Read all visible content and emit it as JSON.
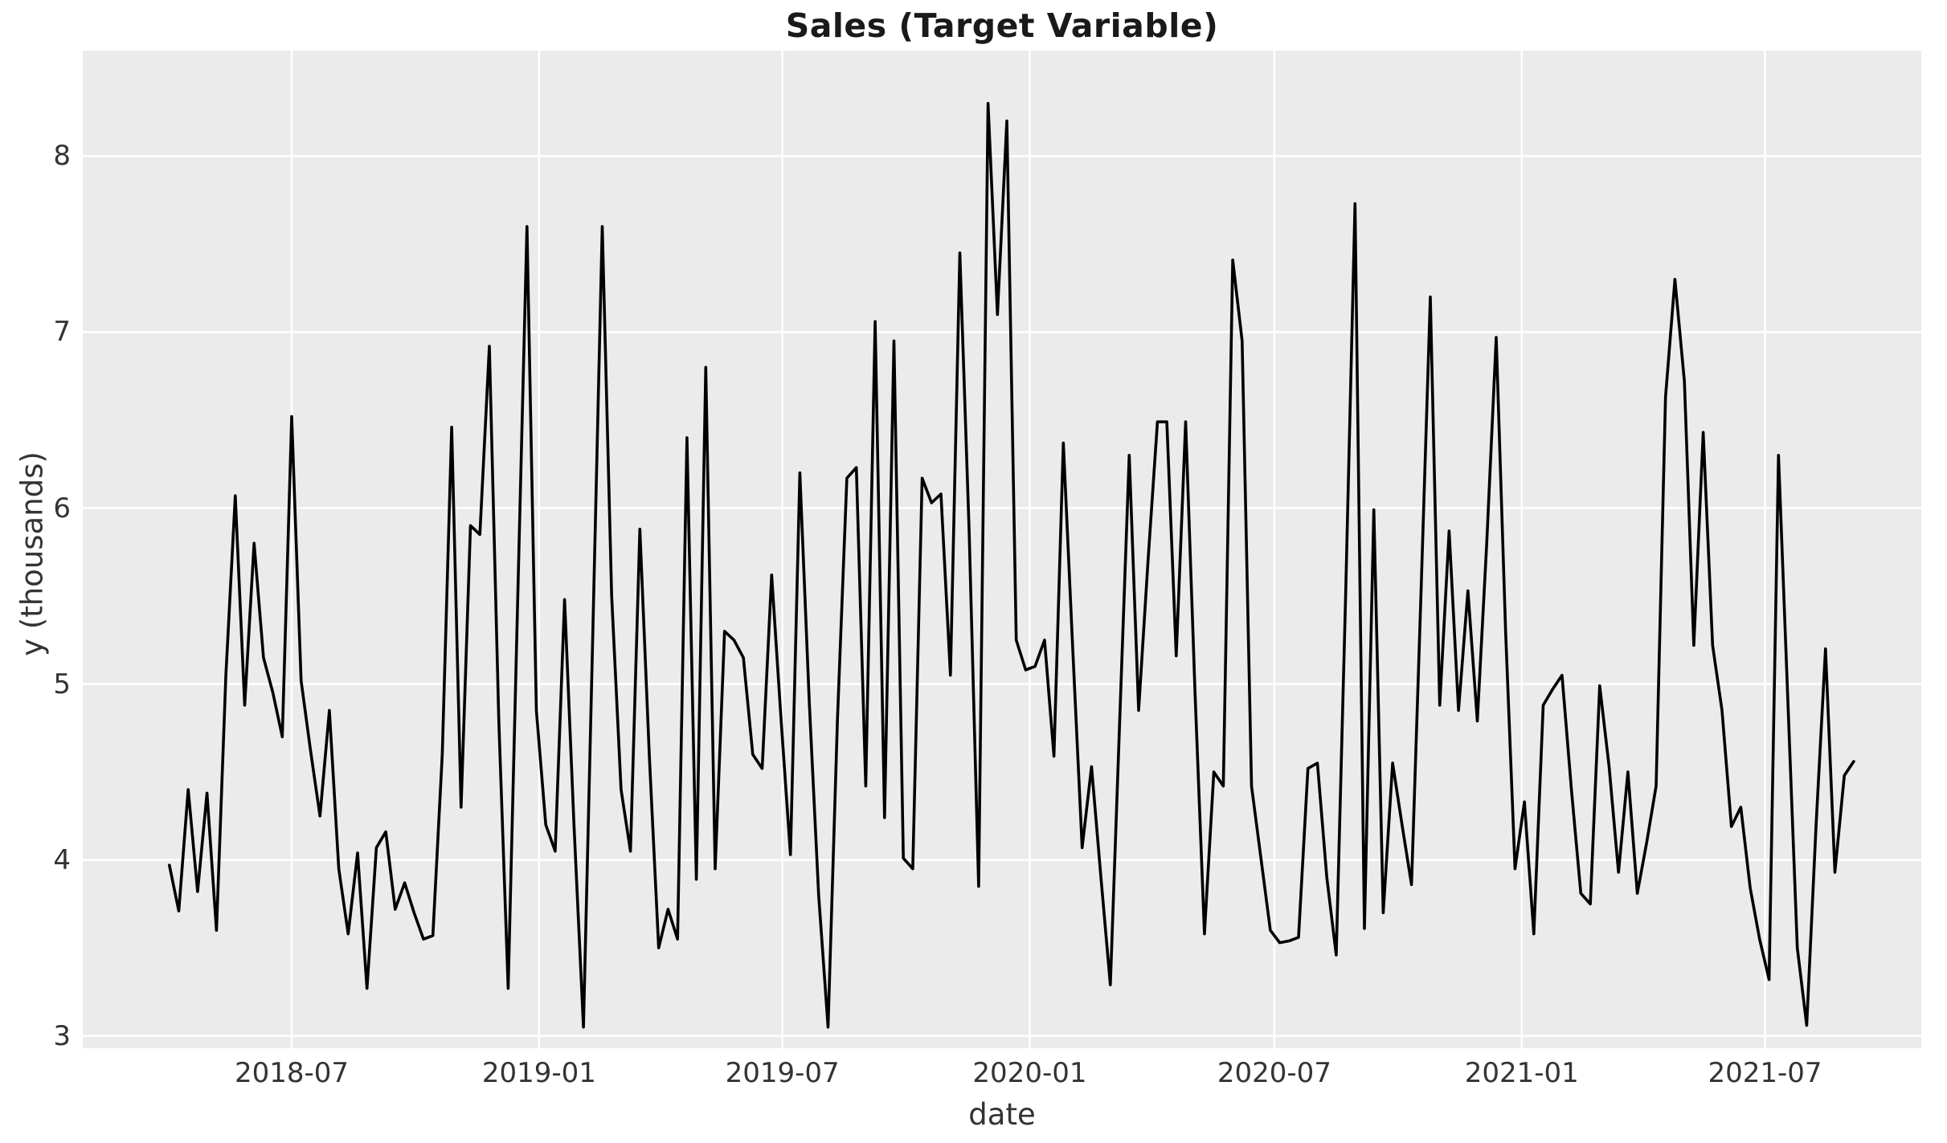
{
  "title": "Sales (Target Variable)",
  "style": {
    "figure_bg": "#ffffff",
    "plot_bg": "#ebebeb",
    "grid_color": "#ffffff",
    "line_color": "#000000",
    "title_color": "#1a1a1a",
    "tick_color": "#333333"
  },
  "chart_data": {
    "type": "line",
    "title": "Sales (Target Variable)",
    "xlabel": "date",
    "ylabel": "y (thousands)",
    "legend_position": "none",
    "grid": true,
    "y_ticks": [
      3,
      4,
      5,
      6,
      7,
      8
    ],
    "x_tick_labels": [
      "2018-07",
      "2019-01",
      "2019-07",
      "2020-01",
      "2020-07",
      "2021-01",
      "2021-07"
    ],
    "ylim": [
      2.93,
      8.6
    ],
    "series_start_date": "2018-04-01",
    "cadence_days": 7,
    "values": [
      3.97,
      3.71,
      4.4,
      3.82,
      4.38,
      3.6,
      5.05,
      6.07,
      4.88,
      5.8,
      5.15,
      4.95,
      4.7,
      6.52,
      5.02,
      4.62,
      4.25,
      4.85,
      3.95,
      3.58,
      4.04,
      3.27,
      4.07,
      4.16,
      3.72,
      3.87,
      3.7,
      3.55,
      3.57,
      4.6,
      6.46,
      4.3,
      5.9,
      5.85,
      6.92,
      4.8,
      3.27,
      5.45,
      7.6,
      4.85,
      4.2,
      4.05,
      5.48,
      4.2,
      3.05,
      5.3,
      7.6,
      5.5,
      4.4,
      4.05,
      5.88,
      4.6,
      3.5,
      3.72,
      3.55,
      6.4,
      3.89,
      6.8,
      3.95,
      5.3,
      5.25,
      5.15,
      4.6,
      4.52,
      5.62,
      4.8,
      4.03,
      6.2,
      4.9,
      3.8,
      3.05,
      4.8,
      6.17,
      6.23,
      4.42,
      7.06,
      4.24,
      6.95,
      4.01,
      3.95,
      6.17,
      6.03,
      6.08,
      5.05,
      7.45,
      5.85,
      3.85,
      8.3,
      7.1,
      8.2,
      5.25,
      5.08,
      5.1,
      5.25,
      4.59,
      6.37,
      5.2,
      4.07,
      4.53,
      3.9,
      3.29,
      4.8,
      6.3,
      4.85,
      5.7,
      6.49,
      6.49,
      5.16,
      6.49,
      4.95,
      3.58,
      4.5,
      4.42,
      7.41,
      6.95,
      4.42,
      4.01,
      3.6,
      3.53,
      3.54,
      3.56,
      4.52,
      4.55,
      3.9,
      3.46,
      5.5,
      7.73,
      3.61,
      5.99,
      3.7,
      4.55,
      4.2,
      3.86,
      5.5,
      7.2,
      4.88,
      5.87,
      4.85,
      5.53,
      4.79,
      5.8,
      6.97,
      5.3,
      3.95,
      4.33,
      3.58,
      4.88,
      4.97,
      5.05,
      4.4,
      3.81,
      3.75,
      4.99,
      4.53,
      3.93,
      4.5,
      3.81,
      4.1,
      4.42,
      6.63,
      7.3,
      6.72,
      5.22,
      6.43,
      5.22,
      4.85,
      4.19,
      4.3,
      3.84,
      3.55,
      3.32,
      6.3,
      4.9,
      3.5,
      3.06,
      4.2,
      5.2,
      3.93,
      4.48,
      4.56
    ]
  }
}
